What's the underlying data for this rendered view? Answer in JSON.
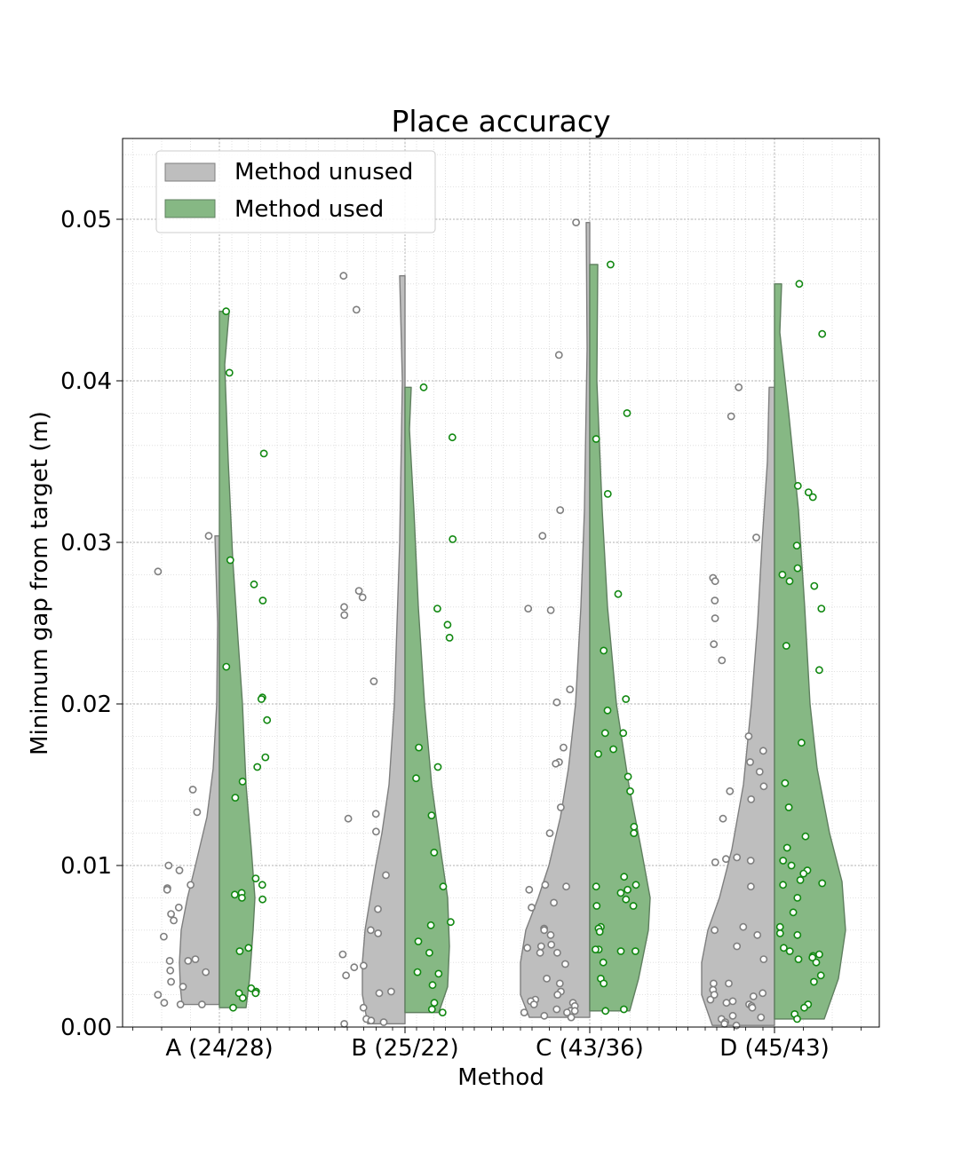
{
  "chart_data": {
    "type": "violin",
    "title": "Place accuracy",
    "xlabel": "Method",
    "ylabel": "Minimum gap from target (m)",
    "ylim": [
      0,
      0.055
    ],
    "yticks": [
      0.0,
      0.01,
      0.02,
      0.03,
      0.04,
      0.05
    ],
    "ytick_labels": [
      "0.00",
      "0.01",
      "0.02",
      "0.03",
      "0.04",
      "0.05"
    ],
    "grid": true,
    "legend_position": "top-left",
    "categories": [
      "A (24/28)",
      "B (25/22)",
      "C (43/36)",
      "D (45/43)"
    ],
    "series": [
      {
        "name": "Method unused",
        "color": "#bebebe",
        "edge": "#7f7f7f",
        "points": [
          [
            0.0304,
            0.0282,
            0.0147,
            0.0133,
            0.01,
            0.0097,
            0.0088,
            0.0086,
            0.0085,
            0.0074,
            0.007,
            0.0066,
            0.0056,
            0.0042,
            0.0041,
            0.0041,
            0.0035,
            0.0034,
            0.0028,
            0.0025,
            0.002,
            0.0015,
            0.0014,
            0.0014
          ],
          [
            0.0465,
            0.0444,
            0.027,
            0.0266,
            0.026,
            0.0255,
            0.0214,
            0.0132,
            0.0129,
            0.0121,
            0.0094,
            0.0073,
            0.006,
            0.0058,
            0.0045,
            0.0038,
            0.0037,
            0.0032,
            0.0022,
            0.0021,
            0.0012,
            0.0005,
            0.0004,
            0.0003,
            0.0002
          ],
          [
            0.0498,
            0.0416,
            0.032,
            0.0304,
            0.0259,
            0.0258,
            0.0209,
            0.0201,
            0.0173,
            0.0164,
            0.0163,
            0.0136,
            0.012,
            0.0088,
            0.0087,
            0.0085,
            0.0077,
            0.0074,
            0.0061,
            0.006,
            0.0057,
            0.0051,
            0.005,
            0.0049,
            0.0046,
            0.0046,
            0.0039,
            0.003,
            0.0027,
            0.0022,
            0.002,
            0.0017,
            0.0016,
            0.0015,
            0.0014,
            0.0013,
            0.0011,
            0.001,
            0.001,
            0.0009,
            0.0009,
            0.0007,
            0.0006
          ],
          [
            0.0396,
            0.0378,
            0.0303,
            0.0278,
            0.0276,
            0.0264,
            0.0253,
            0.0237,
            0.0227,
            0.018,
            0.0171,
            0.0164,
            0.0158,
            0.0149,
            0.0146,
            0.0141,
            0.0129,
            0.0105,
            0.0104,
            0.0103,
            0.0102,
            0.0087,
            0.0062,
            0.006,
            0.0057,
            0.005,
            0.0042,
            0.0027,
            0.0027,
            0.0023,
            0.0021,
            0.002,
            0.0019,
            0.0017,
            0.0016,
            0.0015,
            0.0014,
            0.0013,
            0.0012,
            0.0007,
            0.0006,
            0.0005,
            0.0003,
            0.0002,
            0.0001
          ]
        ]
      },
      {
        "name": "Method used",
        "color": "#86b884",
        "edge": "#5f7f5f",
        "points": [
          [
            0.0443,
            0.0405,
            0.0355,
            0.0289,
            0.0274,
            0.0264,
            0.0223,
            0.0204,
            0.0203,
            0.019,
            0.0167,
            0.0161,
            0.0152,
            0.0142,
            0.0092,
            0.0088,
            0.0083,
            0.0082,
            0.008,
            0.0079,
            0.0049,
            0.0047,
            0.0024,
            0.0022,
            0.0021,
            0.0021,
            0.0018,
            0.0012
          ],
          [
            0.0396,
            0.0365,
            0.0302,
            0.0259,
            0.0249,
            0.0241,
            0.0173,
            0.0161,
            0.0154,
            0.0131,
            0.0108,
            0.0087,
            0.0065,
            0.0063,
            0.0053,
            0.0046,
            0.0034,
            0.0033,
            0.0026,
            0.0015,
            0.0011,
            0.0009
          ],
          [
            0.0472,
            0.038,
            0.0364,
            0.033,
            0.0268,
            0.0233,
            0.0203,
            0.0196,
            0.0182,
            0.0182,
            0.0172,
            0.0169,
            0.0155,
            0.0146,
            0.0124,
            0.012,
            0.0093,
            0.0088,
            0.0087,
            0.0085,
            0.0083,
            0.0079,
            0.0075,
            0.0075,
            0.0062,
            0.0061,
            0.0059,
            0.0048,
            0.0048,
            0.0047,
            0.0047,
            0.004,
            0.003,
            0.0027,
            0.0011,
            0.001
          ],
          [
            0.046,
            0.0429,
            0.0335,
            0.0331,
            0.0328,
            0.0298,
            0.0284,
            0.028,
            0.0276,
            0.0273,
            0.0259,
            0.0236,
            0.0221,
            0.0176,
            0.0151,
            0.0136,
            0.0118,
            0.0111,
            0.0103,
            0.01,
            0.0097,
            0.0095,
            0.0091,
            0.0089,
            0.0088,
            0.008,
            0.0071,
            0.0062,
            0.0058,
            0.0057,
            0.0049,
            0.0047,
            0.0045,
            0.0044,
            0.0043,
            0.0042,
            0.004,
            0.0032,
            0.0028,
            0.0014,
            0.0012,
            0.0008,
            0.0005
          ]
        ]
      }
    ],
    "violins": {
      "unused": [
        {
          "min": 0.0014,
          "max": 0.0304,
          "profile": [
            [
              0.0014,
              42
            ],
            [
              0.0025,
              44
            ],
            [
              0.004,
              45
            ],
            [
              0.006,
              43
            ],
            [
              0.008,
              36
            ],
            [
              0.01,
              27
            ],
            [
              0.013,
              14
            ],
            [
              0.016,
              7
            ],
            [
              0.02,
              3
            ],
            [
              0.025,
              2
            ],
            [
              0.0304,
              5
            ]
          ]
        },
        {
          "min": 0.0002,
          "max": 0.0465,
          "profile": [
            [
              0.0002,
              42
            ],
            [
              0.002,
              48
            ],
            [
              0.004,
              48
            ],
            [
              0.006,
              45
            ],
            [
              0.008,
              39
            ],
            [
              0.01,
              33
            ],
            [
              0.012,
              26
            ],
            [
              0.015,
              18
            ],
            [
              0.02,
              12
            ],
            [
              0.025,
              9
            ],
            [
              0.03,
              6
            ],
            [
              0.04,
              3
            ],
            [
              0.0465,
              6
            ]
          ]
        },
        {
          "min": 0.0006,
          "max": 0.0498,
          "profile": [
            [
              0.0006,
              68
            ],
            [
              0.002,
              78
            ],
            [
              0.004,
              78
            ],
            [
              0.006,
              72
            ],
            [
              0.008,
              58
            ],
            [
              0.01,
              46
            ],
            [
              0.013,
              33
            ],
            [
              0.016,
              24
            ],
            [
              0.02,
              16
            ],
            [
              0.026,
              10
            ],
            [
              0.032,
              6
            ],
            [
              0.042,
              3
            ],
            [
              0.0498,
              4
            ]
          ]
        },
        {
          "min": 0.0001,
          "max": 0.0396,
          "profile": [
            [
              0.0001,
              70
            ],
            [
              0.002,
              82
            ],
            [
              0.004,
              82
            ],
            [
              0.006,
              75
            ],
            [
              0.008,
              62
            ],
            [
              0.011,
              48
            ],
            [
              0.015,
              35
            ],
            [
              0.02,
              26
            ],
            [
              0.025,
              19
            ],
            [
              0.03,
              14
            ],
            [
              0.035,
              8
            ],
            [
              0.0396,
              6
            ]
          ]
        }
      ],
      "used": [
        {
          "min": 0.0012,
          "max": 0.0443,
          "profile": [
            [
              0.0012,
              30
            ],
            [
              0.003,
              34
            ],
            [
              0.006,
              38
            ],
            [
              0.008,
              40
            ],
            [
              0.011,
              36
            ],
            [
              0.015,
              30
            ],
            [
              0.02,
              26
            ],
            [
              0.024,
              21
            ],
            [
              0.029,
              15
            ],
            [
              0.035,
              10
            ],
            [
              0.041,
              6
            ],
            [
              0.0443,
              11
            ]
          ]
        },
        {
          "min": 0.0009,
          "max": 0.0396,
          "profile": [
            [
              0.0009,
              38
            ],
            [
              0.0025,
              48
            ],
            [
              0.005,
              50
            ],
            [
              0.008,
              48
            ],
            [
              0.011,
              40
            ],
            [
              0.015,
              30
            ],
            [
              0.02,
              22
            ],
            [
              0.026,
              15
            ],
            [
              0.032,
              10
            ],
            [
              0.037,
              5
            ],
            [
              0.0396,
              7
            ]
          ]
        },
        {
          "min": 0.001,
          "max": 0.0472,
          "profile": [
            [
              0.001,
              45
            ],
            [
              0.003,
              55
            ],
            [
              0.006,
              66
            ],
            [
              0.008,
              68
            ],
            [
              0.011,
              58
            ],
            [
              0.015,
              44
            ],
            [
              0.02,
              30
            ],
            [
              0.026,
              20
            ],
            [
              0.032,
              14
            ],
            [
              0.04,
              8
            ],
            [
              0.0472,
              9
            ]
          ]
        },
        {
          "min": 0.0005,
          "max": 0.046,
          "profile": [
            [
              0.0005,
              56
            ],
            [
              0.003,
              72
            ],
            [
              0.006,
              80
            ],
            [
              0.009,
              76
            ],
            [
              0.012,
              62
            ],
            [
              0.016,
              48
            ],
            [
              0.02,
              40
            ],
            [
              0.026,
              34
            ],
            [
              0.032,
              27
            ],
            [
              0.038,
              16
            ],
            [
              0.043,
              6
            ],
            [
              0.046,
              8
            ]
          ]
        }
      ]
    }
  }
}
